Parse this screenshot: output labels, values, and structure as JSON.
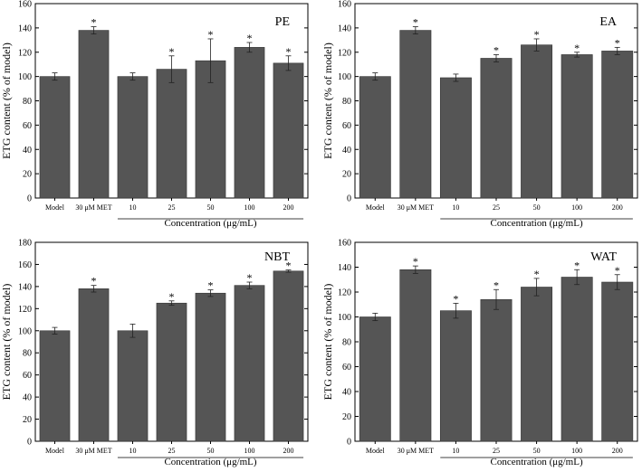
{
  "chart_data": [
    {
      "type": "bar",
      "panel_label": "PE",
      "categories": [
        "Model",
        "30 μM MET",
        "10",
        "25",
        "50",
        "100",
        "200"
      ],
      "values": [
        100,
        138,
        100,
        106,
        113,
        124,
        111
      ],
      "errors": [
        3,
        3,
        3,
        11,
        18,
        4,
        6
      ],
      "significant": [
        false,
        true,
        false,
        true,
        true,
        true,
        true
      ],
      "significance_marker": "*",
      "ylabel": "ETG content (% of model)",
      "xlabel": "Concentration (μg/mL)",
      "ylim": [
        0,
        160
      ],
      "yticks": [
        0,
        20,
        40,
        60,
        80,
        100,
        120,
        140,
        160
      ]
    },
    {
      "type": "bar",
      "panel_label": "EA",
      "categories": [
        "Model",
        "30 μM MET",
        "10",
        "25",
        "50",
        "100",
        "200"
      ],
      "values": [
        100,
        138,
        99,
        115,
        126,
        118,
        121
      ],
      "errors": [
        3,
        3,
        3,
        3,
        5,
        2,
        3
      ],
      "significant": [
        false,
        true,
        false,
        true,
        true,
        true,
        true
      ],
      "significance_marker": "*",
      "ylabel": "ETG content (% of model)",
      "xlabel": "Concentration (μg/mL)",
      "ylim": [
        0,
        160
      ],
      "yticks": [
        0,
        20,
        40,
        60,
        80,
        100,
        120,
        140,
        160
      ]
    },
    {
      "type": "bar",
      "panel_label": "NBT",
      "categories": [
        "Model",
        "30 μM MET",
        "10",
        "25",
        "50",
        "100",
        "200"
      ],
      "values": [
        100,
        138,
        100,
        125,
        134,
        141,
        154
      ],
      "errors": [
        3,
        3,
        6,
        2,
        3,
        3,
        1
      ],
      "significant": [
        false,
        true,
        false,
        true,
        true,
        true,
        true
      ],
      "significance_marker": "*",
      "ylabel": "ETG content (% of model)",
      "xlabel": "Concentration (μg/mL)",
      "ylim": [
        0,
        180
      ],
      "yticks": [
        0,
        20,
        40,
        60,
        80,
        100,
        120,
        140,
        160,
        180
      ]
    },
    {
      "type": "bar",
      "panel_label": "WAT",
      "categories": [
        "Model",
        "30 μM MET",
        "10",
        "25",
        "50",
        "100",
        "200"
      ],
      "values": [
        100,
        138,
        105,
        114,
        124,
        132,
        128
      ],
      "errors": [
        3,
        3,
        6,
        8,
        7,
        6,
        6
      ],
      "significant": [
        false,
        true,
        true,
        true,
        true,
        true,
        true
      ],
      "significance_marker": "*",
      "ylabel": "ETG content (% of model)",
      "xlabel": "Concentration (μg/mL)",
      "ylim": [
        0,
        160
      ],
      "yticks": [
        0,
        20,
        40,
        60,
        80,
        100,
        120,
        140,
        160
      ]
    }
  ],
  "style": {
    "bar_color": "#555555",
    "axis_color": "#000000"
  }
}
